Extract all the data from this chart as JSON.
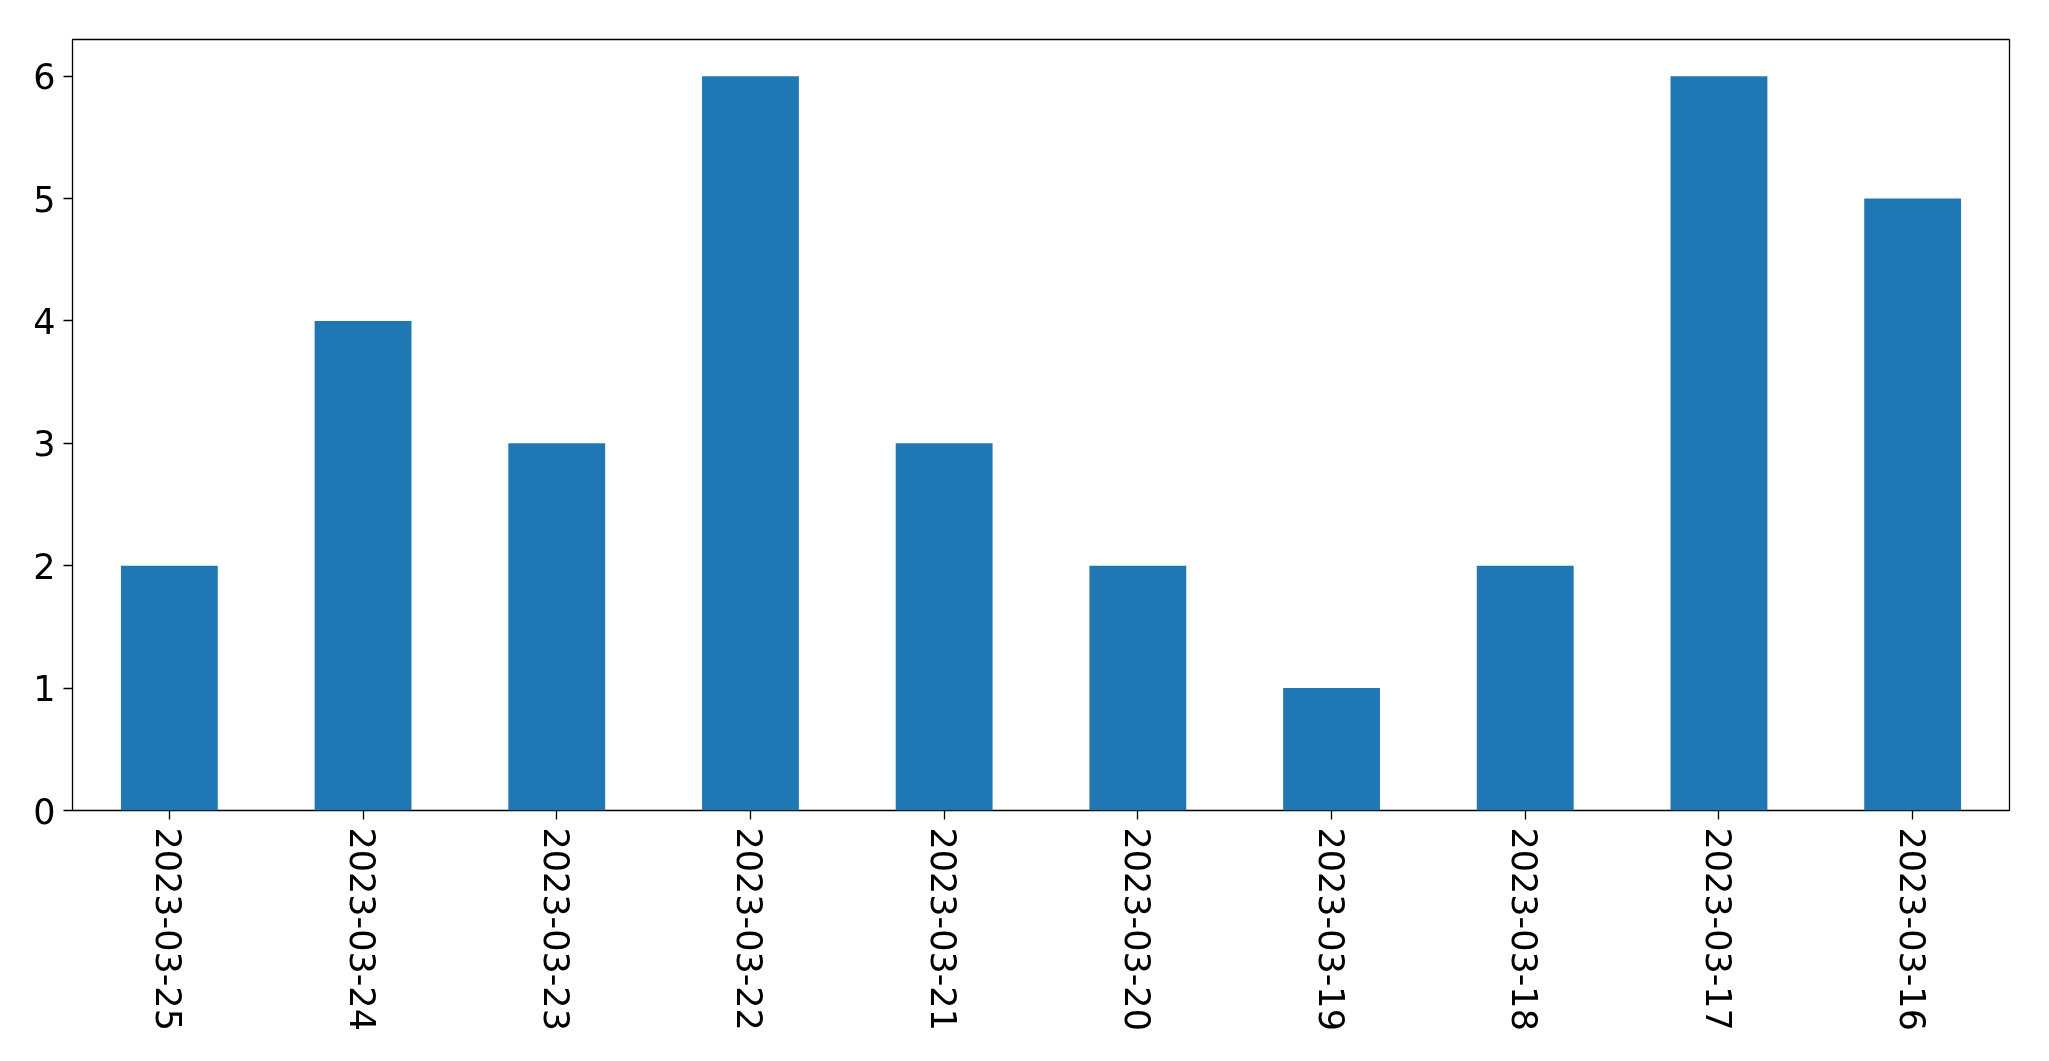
{
  "chart_data": {
    "type": "bar",
    "categories": [
      "2023-03-25",
      "2023-03-24",
      "2023-03-23",
      "2023-03-22",
      "2023-03-21",
      "2023-03-20",
      "2023-03-19",
      "2023-03-18",
      "2023-03-17",
      "2023-03-16"
    ],
    "values": [
      2,
      4,
      3,
      6,
      3,
      2,
      1,
      2,
      6,
      5
    ],
    "color": "#1f77b4",
    "ylim": [
      0,
      6.3
    ],
    "yticks": [
      0,
      1,
      2,
      3,
      4,
      5,
      6
    ]
  }
}
